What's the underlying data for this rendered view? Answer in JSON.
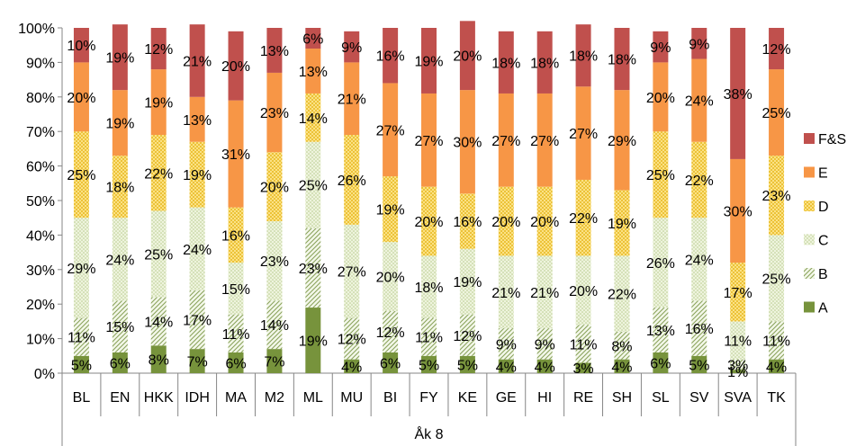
{
  "chart_data": {
    "type": "bar",
    "stacked": true,
    "percent": true,
    "group_label": "Åk 8",
    "categories": [
      "BL",
      "EN",
      "HKK",
      "IDH",
      "MA",
      "M2",
      "ML",
      "MU",
      "BI",
      "FY",
      "KE",
      "GE",
      "HI",
      "RE",
      "SH",
      "SL",
      "SV",
      "SVA",
      "TK"
    ],
    "yticks": [
      "0%",
      "10%",
      "20%",
      "30%",
      "40%",
      "50%",
      "60%",
      "70%",
      "80%",
      "90%",
      "100%"
    ],
    "ylim": [
      0,
      100
    ],
    "grid": false,
    "legend_position": "right",
    "series": [
      {
        "name": "A",
        "color": "#77933c",
        "pattern": "solid",
        "values": [
          5,
          6,
          8,
          7,
          6,
          7,
          19,
          4,
          6,
          5,
          5,
          4,
          4,
          3,
          4,
          6,
          5,
          1,
          4
        ]
      },
      {
        "name": "B",
        "color": "#c3d69b",
        "pattern": "diagonal",
        "values": [
          11,
          15,
          14,
          17,
          11,
          14,
          23,
          12,
          12,
          11,
          12,
          9,
          9,
          11,
          8,
          13,
          16,
          3,
          11
        ]
      },
      {
        "name": "C",
        "color": "#d7e4bd",
        "pattern": "dots",
        "values": [
          29,
          24,
          25,
          24,
          15,
          23,
          25,
          27,
          20,
          18,
          19,
          21,
          21,
          20,
          22,
          26,
          24,
          11,
          25
        ]
      },
      {
        "name": "D",
        "color": "#fac000",
        "pattern": "dots-yellow",
        "values": [
          25,
          18,
          22,
          19,
          16,
          20,
          14,
          26,
          19,
          20,
          16,
          20,
          20,
          22,
          19,
          25,
          22,
          17,
          23
        ]
      },
      {
        "name": "E",
        "color": "#f79646",
        "pattern": "solid",
        "values": [
          20,
          19,
          19,
          13,
          31,
          23,
          13,
          21,
          27,
          27,
          30,
          27,
          27,
          27,
          29,
          20,
          24,
          30,
          25
        ]
      },
      {
        "name": "F&S",
        "color": "#c0504d",
        "pattern": "solid",
        "values": [
          10,
          19,
          12,
          21,
          20,
          13,
          6,
          9,
          16,
          19,
          20,
          18,
          18,
          18,
          18,
          9,
          9,
          38,
          12
        ]
      }
    ]
  }
}
